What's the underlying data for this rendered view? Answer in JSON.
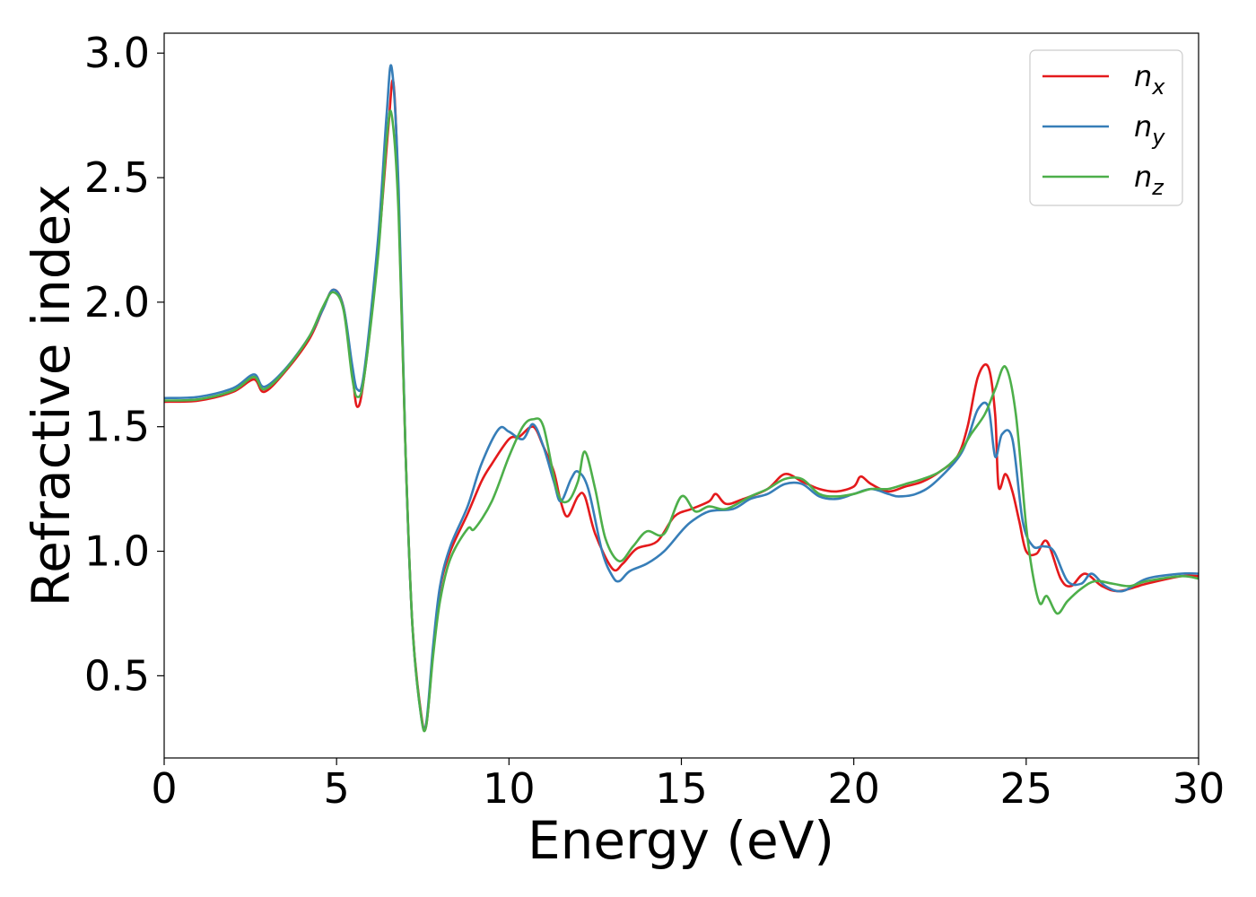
{
  "chart_data": {
    "type": "line",
    "title": "",
    "xlabel": "Energy (eV)",
    "ylabel": "Refractive index",
    "xlim": [
      0,
      30
    ],
    "ylim": [
      0.17,
      3.08
    ],
    "xticks": [
      0,
      5,
      10,
      15,
      20,
      25,
      30
    ],
    "yticks": [
      0.5,
      1.0,
      1.5,
      2.0,
      2.5,
      3.0
    ],
    "xtick_labels": [
      "0",
      "5",
      "10",
      "15",
      "20",
      "25",
      "30"
    ],
    "ytick_labels": [
      "0.5",
      "1.0",
      "1.5",
      "2.0",
      "2.5",
      "3.0"
    ],
    "grid": false,
    "legend_position": "top-right",
    "series": [
      {
        "name": "n",
        "subscript": "x",
        "color": "#e41a1c",
        "points": [
          [
            0,
            1.6
          ],
          [
            1,
            1.605
          ],
          [
            2,
            1.64
          ],
          [
            2.6,
            1.69
          ],
          [
            2.9,
            1.64
          ],
          [
            3.5,
            1.72
          ],
          [
            4.2,
            1.85
          ],
          [
            4.6,
            1.97
          ],
          [
            4.9,
            2.05
          ],
          [
            5.2,
            1.98
          ],
          [
            5.45,
            1.72
          ],
          [
            5.6,
            1.58
          ],
          [
            5.8,
            1.7
          ],
          [
            6.2,
            2.2
          ],
          [
            6.5,
            2.7
          ],
          [
            6.65,
            2.88
          ],
          [
            6.8,
            2.4
          ],
          [
            7.0,
            1.4
          ],
          [
            7.2,
            0.7
          ],
          [
            7.45,
            0.35
          ],
          [
            7.6,
            0.3
          ],
          [
            7.8,
            0.6
          ],
          [
            8.0,
            0.85
          ],
          [
            8.3,
            1.0
          ],
          [
            8.8,
            1.15
          ],
          [
            9.2,
            1.28
          ],
          [
            9.5,
            1.35
          ],
          [
            10.0,
            1.45
          ],
          [
            10.3,
            1.46
          ],
          [
            10.7,
            1.5
          ],
          [
            11.0,
            1.42
          ],
          [
            11.3,
            1.32
          ],
          [
            11.5,
            1.2
          ],
          [
            11.7,
            1.14
          ],
          [
            12.0,
            1.22
          ],
          [
            12.2,
            1.22
          ],
          [
            12.5,
            1.07
          ],
          [
            13.0,
            0.93
          ],
          [
            13.3,
            0.95
          ],
          [
            13.7,
            1.01
          ],
          [
            14.3,
            1.04
          ],
          [
            14.8,
            1.14
          ],
          [
            15.3,
            1.17
          ],
          [
            15.8,
            1.2
          ],
          [
            16.0,
            1.23
          ],
          [
            16.3,
            1.19
          ],
          [
            16.8,
            1.21
          ],
          [
            17.5,
            1.25
          ],
          [
            18.0,
            1.31
          ],
          [
            18.5,
            1.28
          ],
          [
            19.0,
            1.25
          ],
          [
            19.5,
            1.24
          ],
          [
            20.0,
            1.26
          ],
          [
            20.2,
            1.3
          ],
          [
            20.5,
            1.27
          ],
          [
            21.0,
            1.24
          ],
          [
            21.5,
            1.26
          ],
          [
            22.0,
            1.28
          ],
          [
            22.5,
            1.32
          ],
          [
            23.0,
            1.38
          ],
          [
            23.3,
            1.5
          ],
          [
            23.6,
            1.7
          ],
          [
            23.9,
            1.74
          ],
          [
            24.1,
            1.55
          ],
          [
            24.2,
            1.26
          ],
          [
            24.4,
            1.31
          ],
          [
            24.6,
            1.24
          ],
          [
            24.8,
            1.12
          ],
          [
            25.0,
            1.0
          ],
          [
            25.3,
            0.99
          ],
          [
            25.6,
            1.04
          ],
          [
            26.0,
            0.89
          ],
          [
            26.3,
            0.86
          ],
          [
            26.7,
            0.91
          ],
          [
            27.2,
            0.86
          ],
          [
            27.7,
            0.84
          ],
          [
            28.5,
            0.87
          ],
          [
            29.5,
            0.9
          ],
          [
            30,
            0.9
          ]
        ]
      },
      {
        "name": "n",
        "subscript": "y",
        "color": "#377eb8",
        "points": [
          [
            0,
            1.615
          ],
          [
            1,
            1.62
          ],
          [
            2,
            1.655
          ],
          [
            2.6,
            1.71
          ],
          [
            2.9,
            1.66
          ],
          [
            3.5,
            1.73
          ],
          [
            4.2,
            1.86
          ],
          [
            4.6,
            1.97
          ],
          [
            4.9,
            2.05
          ],
          [
            5.2,
            1.98
          ],
          [
            5.45,
            1.75
          ],
          [
            5.6,
            1.65
          ],
          [
            5.8,
            1.72
          ],
          [
            6.2,
            2.25
          ],
          [
            6.45,
            2.75
          ],
          [
            6.6,
            2.94
          ],
          [
            6.8,
            2.45
          ],
          [
            7.0,
            1.4
          ],
          [
            7.2,
            0.7
          ],
          [
            7.45,
            0.34
          ],
          [
            7.6,
            0.31
          ],
          [
            7.8,
            0.62
          ],
          [
            8.0,
            0.86
          ],
          [
            8.3,
            1.02
          ],
          [
            8.8,
            1.18
          ],
          [
            9.2,
            1.35
          ],
          [
            9.7,
            1.49
          ],
          [
            10.0,
            1.48
          ],
          [
            10.4,
            1.45
          ],
          [
            10.7,
            1.51
          ],
          [
            11.0,
            1.42
          ],
          [
            11.3,
            1.28
          ],
          [
            11.5,
            1.2
          ],
          [
            11.8,
            1.29
          ],
          [
            12.0,
            1.32
          ],
          [
            12.3,
            1.25
          ],
          [
            12.7,
            1.0
          ],
          [
            13.0,
            0.9
          ],
          [
            13.2,
            0.88
          ],
          [
            13.5,
            0.92
          ],
          [
            14.0,
            0.95
          ],
          [
            14.5,
            1.0
          ],
          [
            15.0,
            1.08
          ],
          [
            15.3,
            1.12
          ],
          [
            15.8,
            1.16
          ],
          [
            16.5,
            1.17
          ],
          [
            17.0,
            1.21
          ],
          [
            17.5,
            1.23
          ],
          [
            18.0,
            1.27
          ],
          [
            18.5,
            1.27
          ],
          [
            19.0,
            1.22
          ],
          [
            19.5,
            1.21
          ],
          [
            20.0,
            1.23
          ],
          [
            20.5,
            1.25
          ],
          [
            21.0,
            1.23
          ],
          [
            21.3,
            1.22
          ],
          [
            21.8,
            1.23
          ],
          [
            22.3,
            1.27
          ],
          [
            23.0,
            1.37
          ],
          [
            23.3,
            1.45
          ],
          [
            23.6,
            1.57
          ],
          [
            23.9,
            1.58
          ],
          [
            24.1,
            1.38
          ],
          [
            24.3,
            1.47
          ],
          [
            24.6,
            1.45
          ],
          [
            24.9,
            1.12
          ],
          [
            25.2,
            1.02
          ],
          [
            25.5,
            1.02
          ],
          [
            25.8,
            1.0
          ],
          [
            26.2,
            0.88
          ],
          [
            26.6,
            0.87
          ],
          [
            26.9,
            0.91
          ],
          [
            27.3,
            0.86
          ],
          [
            27.8,
            0.84
          ],
          [
            28.5,
            0.89
          ],
          [
            29.5,
            0.91
          ],
          [
            30,
            0.91
          ]
        ]
      },
      {
        "name": "n",
        "subscript": "z",
        "color": "#4daf4a",
        "points": [
          [
            0,
            1.605
          ],
          [
            1,
            1.61
          ],
          [
            2,
            1.645
          ],
          [
            2.6,
            1.7
          ],
          [
            2.9,
            1.65
          ],
          [
            3.5,
            1.725
          ],
          [
            4.2,
            1.86
          ],
          [
            4.6,
            1.98
          ],
          [
            4.9,
            2.04
          ],
          [
            5.2,
            1.97
          ],
          [
            5.45,
            1.7
          ],
          [
            5.6,
            1.62
          ],
          [
            5.8,
            1.7
          ],
          [
            6.2,
            2.18
          ],
          [
            6.45,
            2.65
          ],
          [
            6.6,
            2.75
          ],
          [
            6.8,
            2.35
          ],
          [
            7.0,
            1.4
          ],
          [
            7.2,
            0.7
          ],
          [
            7.45,
            0.34
          ],
          [
            7.6,
            0.3
          ],
          [
            7.8,
            0.58
          ],
          [
            8.0,
            0.8
          ],
          [
            8.3,
            0.97
          ],
          [
            8.8,
            1.09
          ],
          [
            9.0,
            1.09
          ],
          [
            9.5,
            1.2
          ],
          [
            10.0,
            1.38
          ],
          [
            10.4,
            1.5
          ],
          [
            10.7,
            1.53
          ],
          [
            11.0,
            1.5
          ],
          [
            11.4,
            1.24
          ],
          [
            11.7,
            1.2
          ],
          [
            12.0,
            1.28
          ],
          [
            12.2,
            1.4
          ],
          [
            12.5,
            1.25
          ],
          [
            12.8,
            1.05
          ],
          [
            13.2,
            0.96
          ],
          [
            13.6,
            1.02
          ],
          [
            14.0,
            1.08
          ],
          [
            14.5,
            1.07
          ],
          [
            15.0,
            1.22
          ],
          [
            15.4,
            1.16
          ],
          [
            15.8,
            1.18
          ],
          [
            16.3,
            1.17
          ],
          [
            17.0,
            1.22
          ],
          [
            17.5,
            1.25
          ],
          [
            18.0,
            1.29
          ],
          [
            18.5,
            1.29
          ],
          [
            19.0,
            1.23
          ],
          [
            19.5,
            1.22
          ],
          [
            20.0,
            1.23
          ],
          [
            20.5,
            1.25
          ],
          [
            21.0,
            1.25
          ],
          [
            21.5,
            1.27
          ],
          [
            22.0,
            1.29
          ],
          [
            22.5,
            1.32
          ],
          [
            23.0,
            1.38
          ],
          [
            23.4,
            1.47
          ],
          [
            23.8,
            1.55
          ],
          [
            24.1,
            1.65
          ],
          [
            24.4,
            1.74
          ],
          [
            24.7,
            1.55
          ],
          [
            25.0,
            1.1
          ],
          [
            25.2,
            0.9
          ],
          [
            25.4,
            0.79
          ],
          [
            25.6,
            0.82
          ],
          [
            25.9,
            0.75
          ],
          [
            26.2,
            0.8
          ],
          [
            26.6,
            0.85
          ],
          [
            27.0,
            0.88
          ],
          [
            27.5,
            0.87
          ],
          [
            28.0,
            0.86
          ],
          [
            28.5,
            0.88
          ],
          [
            29.5,
            0.9
          ],
          [
            30,
            0.89
          ]
        ]
      }
    ]
  }
}
